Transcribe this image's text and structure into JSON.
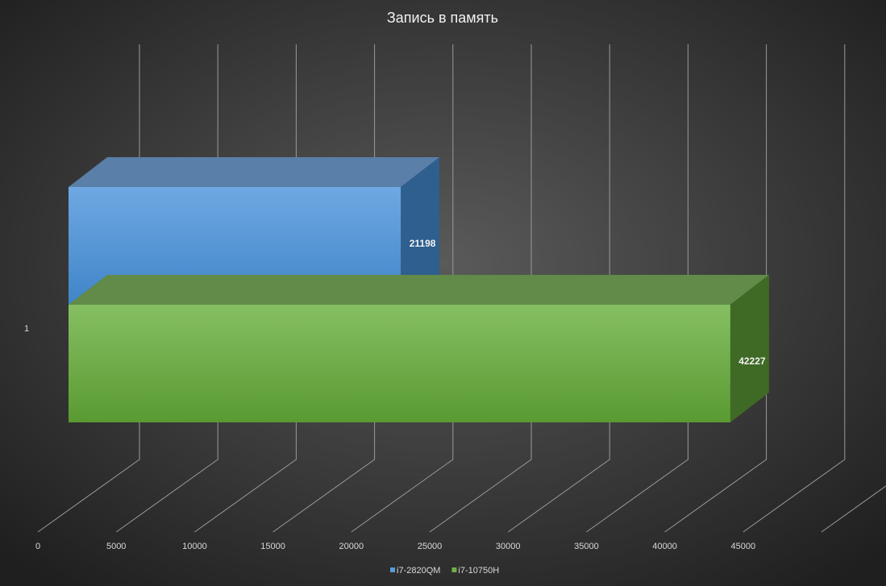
{
  "chart_data": {
    "type": "bar3d_horizontal",
    "title": "Запись в память",
    "categories": [
      "1"
    ],
    "series": [
      {
        "name": "i7-2820QM",
        "color": "#5b9bd5",
        "values": [
          21198
        ]
      },
      {
        "name": "i7-10750H",
        "color": "#70ad47",
        "values": [
          42227
        ]
      }
    ],
    "xlim": [
      0,
      50000
    ],
    "xticks": [
      0,
      5000,
      10000,
      15000,
      20000,
      25000,
      30000,
      35000,
      40000,
      45000
    ],
    "grid": true,
    "legend": "bottom"
  }
}
